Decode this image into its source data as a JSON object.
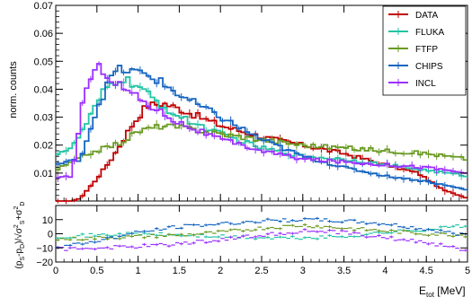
{
  "chart_data": [
    {
      "type": "line",
      "step": true,
      "ylabel": "norm. counts",
      "xlim": [
        0,
        5
      ],
      "ylim": [
        0,
        0.07
      ],
      "grid": false,
      "legend_position": "top-right",
      "x_ticks": [
        0,
        0.5,
        1,
        1.5,
        2,
        2.5,
        3,
        3.5,
        4,
        4.5,
        5
      ],
      "y_ticks": [
        0.01,
        0.02,
        0.03,
        0.04,
        0.05,
        0.06,
        0.07
      ],
      "y_tick_labels": [
        "0.01",
        "0.02",
        "0.03",
        "0.04",
        "0.05",
        "0.06",
        "0.07"
      ],
      "bin_edges_range": [
        0,
        5
      ],
      "series": [
        {
          "name": "DATA",
          "color": "#c00000",
          "nodes_x": [
            0,
            0.2,
            0.3,
            0.5,
            0.7,
            0.9,
            1.1,
            1.3,
            1.5,
            2.0,
            2.5,
            3.0,
            3.5,
            4.0,
            4.4,
            4.7,
            5.0
          ],
          "nodes_y": [
            0.0,
            0.0,
            0.001,
            0.008,
            0.016,
            0.026,
            0.034,
            0.035,
            0.033,
            0.027,
            0.023,
            0.02,
            0.017,
            0.013,
            0.01,
            0.004,
            0.001
          ]
        },
        {
          "name": "FLUKA",
          "color": "#22c4a4",
          "nodes_x": [
            0,
            0.2,
            0.4,
            0.6,
            0.8,
            1.0,
            1.2,
            1.5,
            2.0,
            2.5,
            3.0,
            3.5,
            4.0,
            4.5,
            5.0
          ],
          "nodes_y": [
            0.017,
            0.019,
            0.029,
            0.04,
            0.044,
            0.041,
            0.036,
            0.03,
            0.024,
            0.019,
            0.016,
            0.015,
            0.013,
            0.011,
            0.009
          ]
        },
        {
          "name": "FTFP",
          "color": "#6a9a22",
          "nodes_x": [
            0,
            0.2,
            0.4,
            0.6,
            0.8,
            1.0,
            1.3,
            1.6,
            2.0,
            2.5,
            3.0,
            3.5,
            4.0,
            4.5,
            5.0
          ],
          "nodes_y": [
            0.011,
            0.014,
            0.017,
            0.019,
            0.021,
            0.025,
            0.027,
            0.026,
            0.024,
            0.022,
            0.02,
            0.019,
            0.018,
            0.017,
            0.015
          ]
        },
        {
          "name": "CHIPS",
          "color": "#1565c0",
          "nodes_x": [
            0,
            0.3,
            0.5,
            0.7,
            0.8,
            1.0,
            1.2,
            1.5,
            2.0,
            2.5,
            3.0,
            3.5,
            4.0,
            4.5,
            5.0
          ],
          "nodes_y": [
            0.013,
            0.015,
            0.033,
            0.046,
            0.047,
            0.046,
            0.044,
            0.038,
            0.03,
            0.022,
            0.016,
            0.012,
            0.009,
            0.007,
            0.004
          ]
        },
        {
          "name": "INCL",
          "color": "#9b30ff",
          "nodes_x": [
            0,
            0.2,
            0.35,
            0.5,
            0.55,
            0.7,
            0.9,
            1.1,
            1.5,
            2.0,
            2.5,
            3.0,
            3.5,
            4.0,
            4.5,
            5.0
          ],
          "nodes_y": [
            0.008,
            0.009,
            0.04,
            0.047,
            0.048,
            0.043,
            0.039,
            0.035,
            0.028,
            0.022,
            0.018,
            0.015,
            0.014,
            0.013,
            0.012,
            0.01
          ]
        }
      ]
    },
    {
      "type": "scatter",
      "xlabel": "E_tot [MeV]",
      "ylabel": "(p_S-p_D)/sqrt(σ_S^2+σ_D^2)",
      "xlim": [
        0,
        5
      ],
      "ylim": [
        -20,
        20
      ],
      "grid": false,
      "x_ticks": [
        0,
        0.5,
        1,
        1.5,
        2,
        2.5,
        3,
        3.5,
        4,
        4.5,
        5
      ],
      "x_tick_labels": [
        "0",
        "0.5",
        "1",
        "1.5",
        "2",
        "2.5",
        "3",
        "3.5",
        "4",
        "4.5",
        "5"
      ],
      "y_ticks": [
        -20,
        -10,
        0,
        10
      ],
      "y_tick_labels": [
        "−20",
        "−10",
        "0",
        "10"
      ],
      "series": [
        {
          "name": "FLUKA",
          "color": "#22c4a4",
          "nodes_x": [
            0,
            0.5,
            1.0,
            1.5,
            2.0,
            2.5,
            3.0,
            3.5,
            4.0,
            4.5,
            5.0
          ],
          "nodes_y": [
            -2,
            -1,
            0,
            -1,
            -2,
            -3,
            -3,
            -2,
            1,
            3,
            6
          ]
        },
        {
          "name": "FTFP",
          "color": "#6a9a22",
          "nodes_x": [
            0,
            0.5,
            1.0,
            1.5,
            2.0,
            2.5,
            3.0,
            3.5,
            4.0,
            4.5,
            5.0
          ],
          "nodes_y": [
            -4,
            -3,
            -2,
            -1,
            1,
            4,
            6,
            4,
            2,
            0,
            -1
          ]
        },
        {
          "name": "CHIPS",
          "color": "#1565c0",
          "nodes_x": [
            0,
            0.5,
            1.0,
            1.5,
            2.0,
            2.5,
            3.0,
            3.5,
            4.0,
            4.5,
            5.0
          ],
          "nodes_y": [
            -10,
            -5,
            1,
            5,
            7,
            9,
            10,
            9,
            7,
            3,
            -1
          ]
        },
        {
          "name": "INCL",
          "color": "#9b30ff",
          "nodes_x": [
            0,
            0.5,
            1.0,
            1.5,
            2.0,
            2.5,
            3.0,
            3.5,
            4.0,
            4.5,
            5.0
          ],
          "nodes_y": [
            -11,
            -10,
            -9,
            -7,
            -4,
            -1,
            2,
            1,
            -3,
            -6,
            -12
          ]
        }
      ]
    }
  ]
}
